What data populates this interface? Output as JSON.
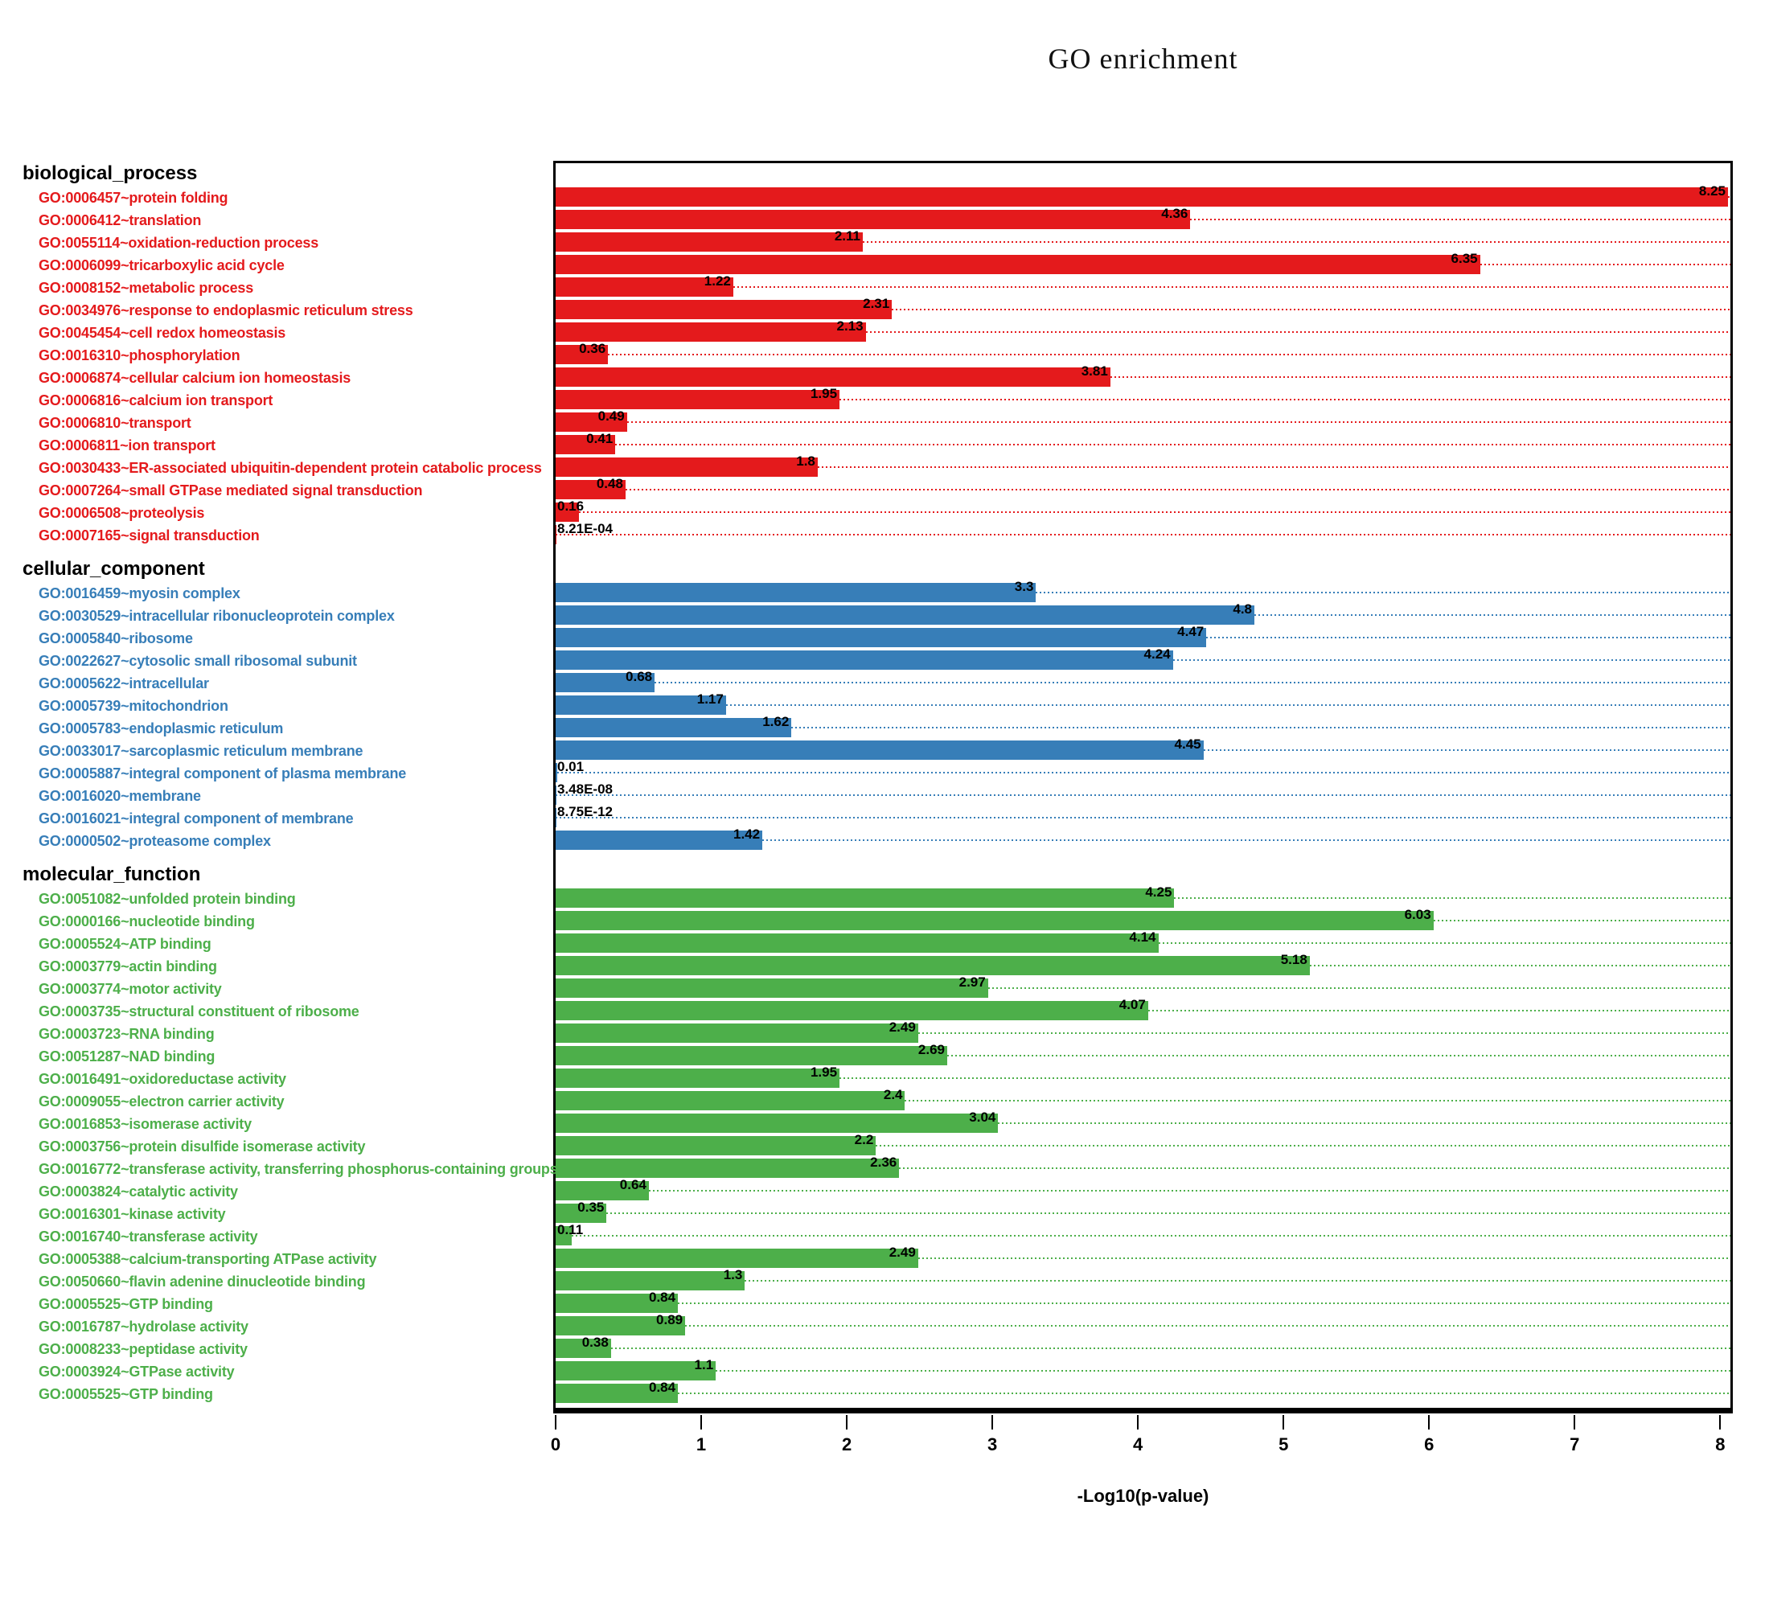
{
  "chart_data": {
    "type": "bar",
    "orientation": "horizontal",
    "title": "GO enrichment",
    "xlabel": "-Log10(p-value)",
    "xlim": [
      0,
      8.07
    ],
    "grid": "dotted leader line per bar, colored as bar",
    "legend": "none",
    "tick_labels": [
      "0",
      "1",
      "2",
      "3",
      "4",
      "5",
      "6",
      "7",
      "8"
    ],
    "sections": [
      {
        "name": "biological_process",
        "color": "#e41a1c",
        "items": [
          {
            "label": "GO:0006457~protein folding",
            "display": "8.25",
            "value": 8.25
          },
          {
            "label": "GO:0006412~translation",
            "display": "4.36",
            "value": 4.36
          },
          {
            "label": "GO:0055114~oxidation-reduction process",
            "display": "2.11",
            "value": 2.11
          },
          {
            "label": "GO:0006099~tricarboxylic acid cycle",
            "display": "6.35",
            "value": 6.35
          },
          {
            "label": "GO:0008152~metabolic process",
            "display": "1.22",
            "value": 1.22
          },
          {
            "label": "GO:0034976~response to endoplasmic reticulum stress",
            "display": "2.31",
            "value": 2.31
          },
          {
            "label": "GO:0045454~cell redox homeostasis",
            "display": "2.13",
            "value": 2.13
          },
          {
            "label": "GO:0016310~phosphorylation",
            "display": "0.36",
            "value": 0.36
          },
          {
            "label": "GO:0006874~cellular calcium ion homeostasis",
            "display": "3.81",
            "value": 3.81
          },
          {
            "label": "GO:0006816~calcium ion transport",
            "display": "1.95",
            "value": 1.95
          },
          {
            "label": "GO:0006810~transport",
            "display": "0.49",
            "value": 0.49
          },
          {
            "label": "GO:0006811~ion transport",
            "display": "0.41",
            "value": 0.41
          },
          {
            "label": "GO:0030433~ER-associated ubiquitin-dependent protein catabolic process",
            "display": "1.8",
            "value": 1.8
          },
          {
            "label": "GO:0007264~small GTPase mediated signal transduction",
            "display": "0.48",
            "value": 0.48
          },
          {
            "label": "GO:0006508~proteolysis",
            "display": "0.16",
            "value": 0.16
          },
          {
            "label": "GO:0007165~signal transduction",
            "display": "8.21E-04",
            "value": 0.000821
          }
        ]
      },
      {
        "name": "cellular_component",
        "color": "#377eb8",
        "items": [
          {
            "label": "GO:0016459~myosin complex",
            "display": "3.3",
            "value": 3.3
          },
          {
            "label": "GO:0030529~intracellular ribonucleoprotein complex",
            "display": "4.8",
            "value": 4.8
          },
          {
            "label": "GO:0005840~ribosome",
            "display": "4.47",
            "value": 4.47
          },
          {
            "label": "GO:0022627~cytosolic small ribosomal subunit",
            "display": "4.24",
            "value": 4.24
          },
          {
            "label": "GO:0005622~intracellular",
            "display": "0.68",
            "value": 0.68
          },
          {
            "label": "GO:0005739~mitochondrion",
            "display": "1.17",
            "value": 1.17
          },
          {
            "label": "GO:0005783~endoplasmic reticulum",
            "display": "1.62",
            "value": 1.62
          },
          {
            "label": "GO:0033017~sarcoplasmic reticulum membrane",
            "display": "4.45",
            "value": 4.45
          },
          {
            "label": "GO:0005887~integral component of plasma membrane",
            "display": "0.01",
            "value": 0.01
          },
          {
            "label": "GO:0016020~membrane",
            "display": "3.48E-08",
            "value": 3.48e-08
          },
          {
            "label": "GO:0016021~integral component of membrane",
            "display": "8.75E-12",
            "value": 8.75e-12
          },
          {
            "label": "GO:0000502~proteasome complex",
            "display": "1.42",
            "value": 1.42
          }
        ]
      },
      {
        "name": "molecular_function",
        "color": "#4daf4a",
        "items": [
          {
            "label": "GO:0051082~unfolded protein binding",
            "display": "4.25",
            "value": 4.25
          },
          {
            "label": "GO:0000166~nucleotide binding",
            "display": "6.03",
            "value": 6.03
          },
          {
            "label": "GO:0005524~ATP binding",
            "display": "4.14",
            "value": 4.14
          },
          {
            "label": "GO:0003779~actin binding",
            "display": "5.18",
            "value": 5.18
          },
          {
            "label": "GO:0003774~motor activity",
            "display": "2.97",
            "value": 2.97
          },
          {
            "label": "GO:0003735~structural constituent of ribosome",
            "display": "4.07",
            "value": 4.07
          },
          {
            "label": "GO:0003723~RNA binding",
            "display": "2.49",
            "value": 2.49
          },
          {
            "label": "GO:0051287~NAD binding",
            "display": "2.69",
            "value": 2.69
          },
          {
            "label": "GO:0016491~oxidoreductase activity",
            "display": "1.95",
            "value": 1.95
          },
          {
            "label": "GO:0009055~electron carrier activity",
            "display": "2.4",
            "value": 2.4
          },
          {
            "label": "GO:0016853~isomerase activity",
            "display": "3.04",
            "value": 3.04
          },
          {
            "label": "GO:0003756~protein disulfide isomerase activity",
            "display": "2.2",
            "value": 2.2
          },
          {
            "label": "GO:0016772~transferase activity, transferring phosphorus-containing groups",
            "display": "2.36",
            "value": 2.36
          },
          {
            "label": "GO:0003824~catalytic activity",
            "display": "0.64",
            "value": 0.64
          },
          {
            "label": "GO:0016301~kinase activity",
            "display": "0.35",
            "value": 0.35
          },
          {
            "label": "GO:0016740~transferase activity",
            "display": "0.11",
            "value": 0.11
          },
          {
            "label": "GO:0005388~calcium-transporting ATPase activity",
            "display": "2.49",
            "value": 2.49
          },
          {
            "label": "GO:0050660~flavin adenine dinucleotide binding",
            "display": "1.3",
            "value": 1.3
          },
          {
            "label": "GO:0005525~GTP binding",
            "display": "0.84",
            "value": 0.84
          },
          {
            "label": "GO:0016787~hydrolase activity",
            "display": "0.89",
            "value": 0.89
          },
          {
            "label": "GO:0008233~peptidase activity",
            "display": "0.38",
            "value": 0.38
          },
          {
            "label": "GO:0003924~GTPase activity",
            "display": "1.1",
            "value": 1.1
          },
          {
            "label": "GO:0005525~GTP binding",
            "display": "0.84",
            "value": 0.84
          }
        ]
      }
    ]
  }
}
